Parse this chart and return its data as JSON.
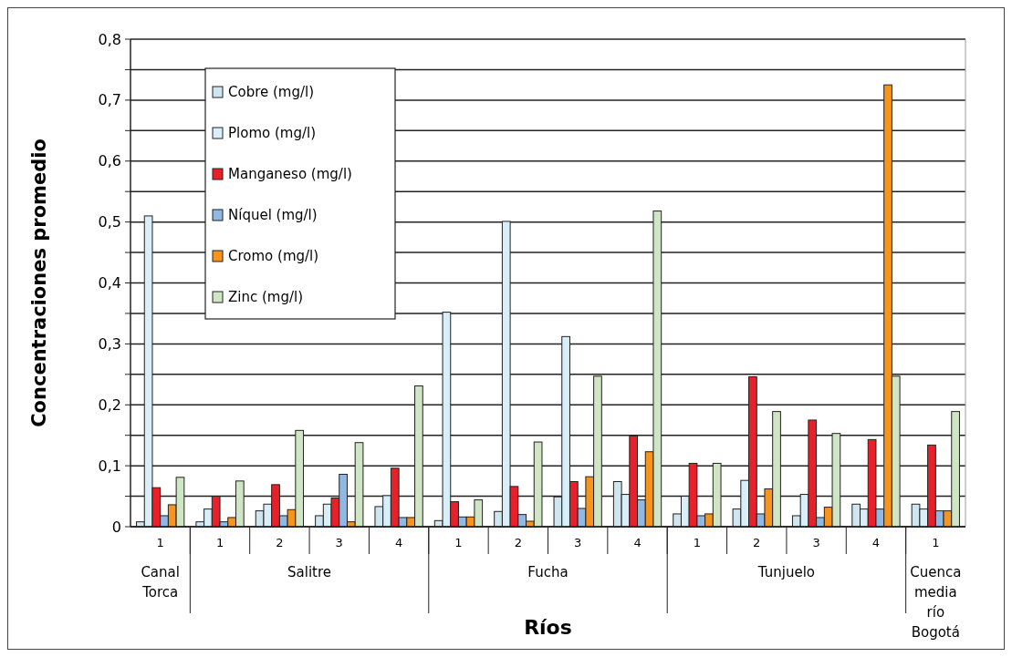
{
  "chart_data": {
    "type": "bar",
    "xlabel": "Ríos",
    "ylabel": "Concentraciones promedio",
    "categories": [
      "1",
      "1",
      "2",
      "3",
      "4",
      "1",
      "2",
      "3",
      "4",
      "1",
      "2",
      "3",
      "4",
      "1"
    ],
    "annotations": [
      "Canal Torca",
      "Salitre",
      "Fucha",
      "Tunjuelo",
      "Cuenca media río Bogotá"
    ],
    "series": [
      {
        "name": "Cobre (mg/l)",
        "color": "#cfe6f0",
        "values": [
          0.008,
          0.008,
          0.026,
          0.018,
          0.033,
          0.01,
          0.025,
          0.049,
          0.074,
          0.021,
          0.029,
          0.018,
          0.037,
          0.037
        ]
      },
      {
        "name": "Plomo (mg/l)",
        "color": "#d8eef8",
        "values": [
          0.51,
          0.029,
          0.037,
          0.037,
          0.051,
          0.352,
          0.501,
          0.312,
          0.053,
          0.05,
          0.076,
          0.053,
          0.029,
          0.029
        ]
      },
      {
        "name": "Manganeso (mg/l)",
        "color": "#e8202a",
        "values": [
          0.064,
          0.05,
          0.069,
          0.047,
          0.096,
          0.041,
          0.066,
          0.074,
          0.149,
          0.104,
          0.246,
          0.175,
          0.143,
          0.134
        ]
      },
      {
        "name": "Níquel (mg/l)",
        "color": "#8fb9e3",
        "values": [
          0.018,
          0.008,
          0.018,
          0.086,
          0.015,
          0.016,
          0.02,
          0.03,
          0.044,
          0.018,
          0.021,
          0.015,
          0.029,
          0.026
        ]
      },
      {
        "name": "Cromo (mg/l)",
        "color": "#f7941d",
        "values": [
          0.036,
          0.015,
          0.028,
          0.008,
          0.015,
          0.016,
          0.009,
          0.082,
          0.123,
          0.021,
          0.062,
          0.032,
          0.725,
          0.026
        ]
      },
      {
        "name": "Zinc (mg/l)",
        "color": "#cfe5c3",
        "values": [
          0.081,
          0.075,
          0.158,
          0.138,
          0.231,
          0.044,
          0.139,
          0.247,
          0.518,
          0.104,
          0.189,
          0.153,
          0.247,
          0.189
        ]
      }
    ],
    "ylim": [
      0,
      0.8
    ],
    "yticks": [
      0,
      {
        "value": 0.05,
        "label": null
      },
      {
        "value": 0.1,
        "label": "0,1"
      },
      {
        "value": 0.15,
        "label": null
      },
      {
        "value": 0.2,
        "label": "0,2"
      },
      {
        "value": 0.25,
        "label": null
      },
      {
        "value": 0.3,
        "label": "0,3"
      },
      {
        "value": 0.35,
        "label": null
      },
      {
        "value": 0.4,
        "label": "0,4"
      },
      {
        "value": 0.45,
        "label": null
      },
      {
        "value": 0.5,
        "label": "0,5"
      },
      {
        "value": 0.55,
        "label": null
      },
      {
        "value": 0.6,
        "label": "0,6"
      },
      {
        "value": 0.65,
        "label": null
      },
      {
        "value": 0.7,
        "label": "0,7"
      },
      {
        "value": 0.75,
        "label": null
      },
      {
        "value": 0.8,
        "label": "0,8"
      }
    ],
    "grid": "y",
    "legend": "top left"
  }
}
